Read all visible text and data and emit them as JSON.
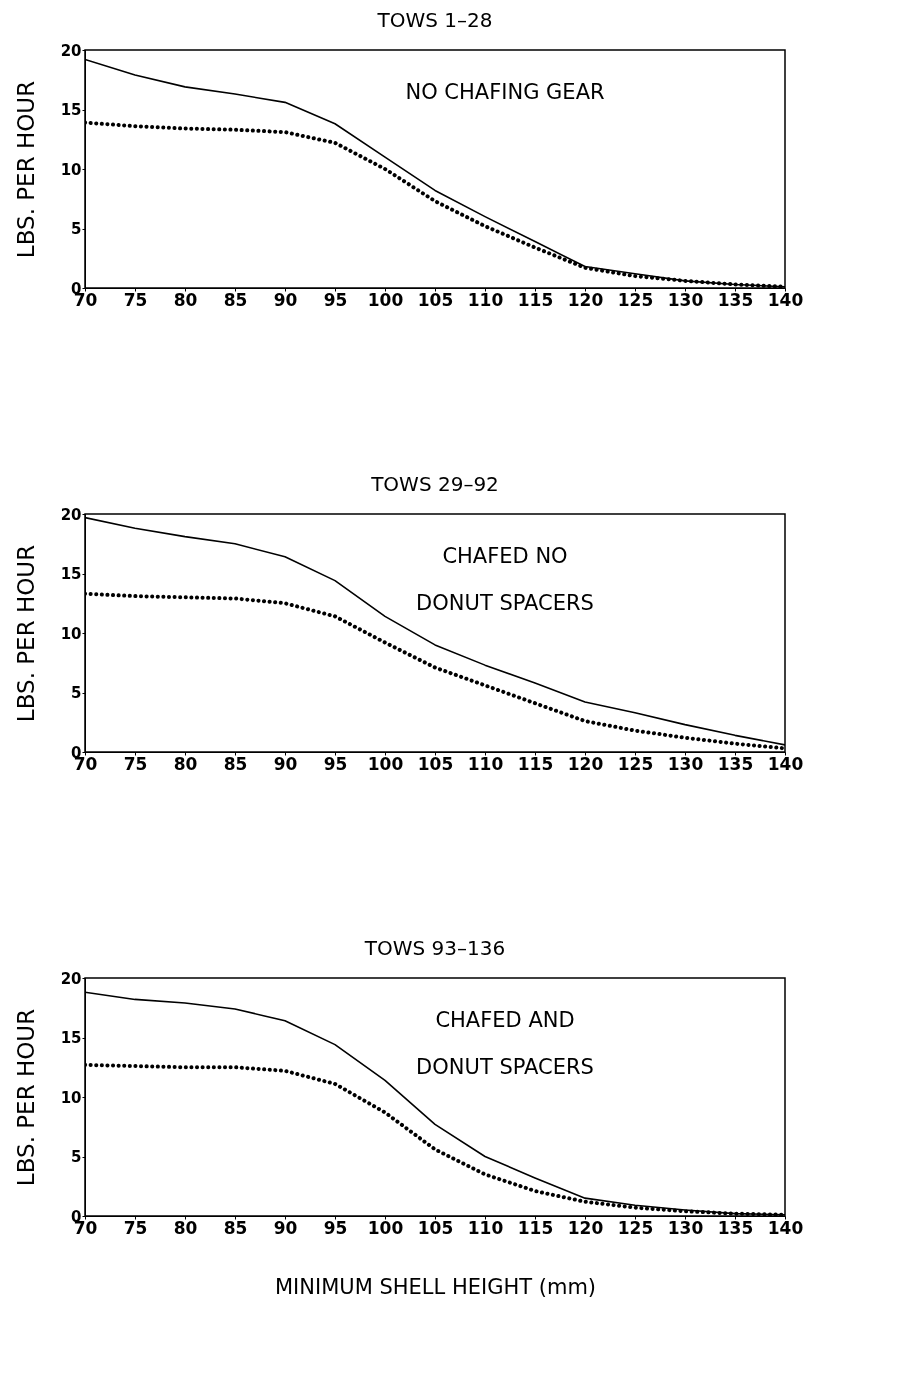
{
  "chart_data": [
    {
      "type": "line",
      "title": "TOWS 1–28",
      "ylabel": "LBS. PER HOUR",
      "x": [
        70,
        75,
        80,
        85,
        90,
        95,
        100,
        105,
        110,
        115,
        120,
        125,
        130,
        135,
        140
      ],
      "xlim": [
        70,
        140
      ],
      "xticks": [
        70,
        75,
        80,
        85,
        90,
        95,
        100,
        105,
        110,
        115,
        120,
        125,
        130,
        135,
        140
      ],
      "ylim": [
        0,
        20
      ],
      "yticks": [
        0,
        5,
        10,
        15,
        20
      ],
      "grid": false,
      "marker": "none",
      "annotations": [
        "NO CHAFING GEAR"
      ],
      "series": [
        {
          "color": "#000000",
          "line_style": "solid",
          "values": [
            19.2,
            17.9,
            16.9,
            16.3,
            15.6,
            13.8,
            11.0,
            8.2,
            6.0,
            3.9,
            1.8,
            1.2,
            0.6,
            0.3,
            0.1
          ]
        },
        {
          "color": "#000000",
          "line_style": "dotted",
          "values": [
            13.9,
            13.6,
            13.4,
            13.3,
            13.1,
            12.2,
            10.0,
            7.3,
            5.2,
            3.4,
            1.7,
            1.0,
            0.6,
            0.3,
            0.1
          ]
        }
      ]
    },
    {
      "type": "line",
      "title": "TOWS 29–92",
      "ylabel": "LBS. PER HOUR",
      "x": [
        70,
        75,
        80,
        85,
        90,
        95,
        100,
        105,
        110,
        115,
        120,
        125,
        130,
        135,
        140
      ],
      "xlim": [
        70,
        140
      ],
      "xticks": [
        70,
        75,
        80,
        85,
        90,
        95,
        100,
        105,
        110,
        115,
        120,
        125,
        130,
        135,
        140
      ],
      "ylim": [
        0,
        20
      ],
      "yticks": [
        0,
        5,
        10,
        15,
        20
      ],
      "grid": false,
      "marker": "none",
      "annotations": [
        "CHAFED NO",
        "DONUT SPACERS"
      ],
      "series": [
        {
          "color": "#000000",
          "line_style": "solid",
          "values": [
            19.7,
            18.8,
            18.1,
            17.5,
            16.4,
            14.4,
            11.4,
            9.0,
            7.3,
            5.8,
            4.2,
            3.3,
            2.3,
            1.4,
            0.6
          ]
        },
        {
          "color": "#000000",
          "line_style": "dotted",
          "values": [
            13.3,
            13.1,
            13.0,
            12.9,
            12.5,
            11.4,
            9.2,
            7.1,
            5.6,
            4.1,
            2.6,
            1.8,
            1.2,
            0.7,
            0.3
          ]
        }
      ]
    },
    {
      "type": "line",
      "title": "TOWS 93–136",
      "ylabel": "LBS. PER HOUR",
      "xlabel": "MINIMUM SHELL HEIGHT (mm)",
      "x": [
        70,
        75,
        80,
        85,
        90,
        95,
        100,
        105,
        110,
        115,
        120,
        125,
        130,
        135,
        140
      ],
      "xlim": [
        70,
        140
      ],
      "xticks": [
        70,
        75,
        80,
        85,
        90,
        95,
        100,
        105,
        110,
        115,
        120,
        125,
        130,
        135,
        140
      ],
      "ylim": [
        0,
        20
      ],
      "yticks": [
        0,
        5,
        10,
        15,
        20
      ],
      "grid": false,
      "marker": "none",
      "annotations": [
        "CHAFED AND",
        "DONUT SPACERS"
      ],
      "series": [
        {
          "color": "#000000",
          "line_style": "solid",
          "values": [
            18.8,
            18.2,
            17.9,
            17.4,
            16.4,
            14.4,
            11.4,
            7.7,
            5.0,
            3.2,
            1.5,
            0.9,
            0.5,
            0.2,
            0.1
          ]
        },
        {
          "color": "#000000",
          "line_style": "dotted",
          "values": [
            12.7,
            12.6,
            12.5,
            12.5,
            12.2,
            11.1,
            8.7,
            5.6,
            3.5,
            2.1,
            1.2,
            0.7,
            0.4,
            0.2,
            0.1
          ]
        }
      ]
    }
  ]
}
